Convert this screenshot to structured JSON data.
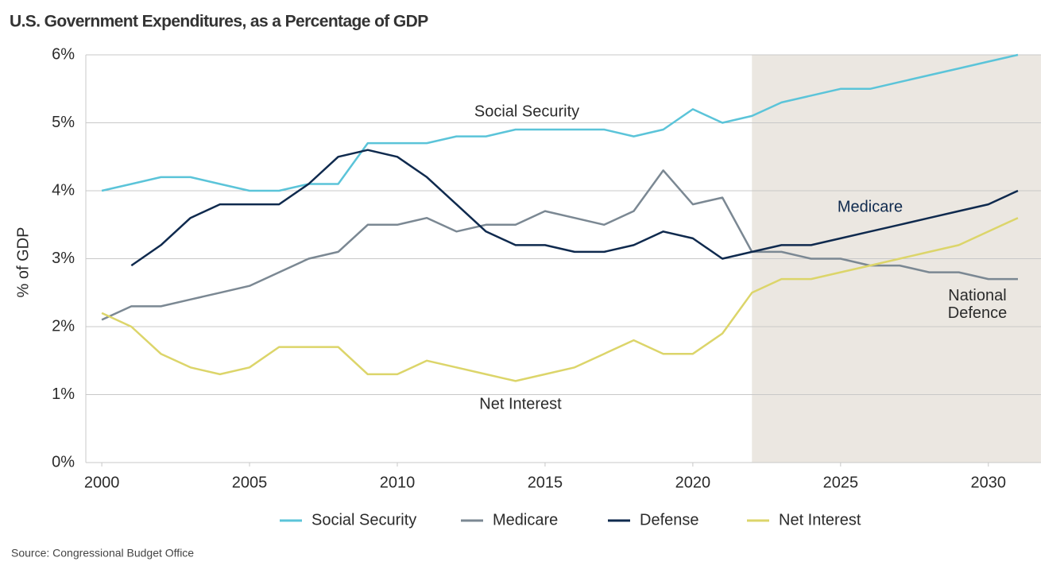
{
  "chart_data": {
    "type": "line",
    "title": "U.S. Government Expenditures, as a Percentage of GDP",
    "y_label": "% of GDP",
    "source": "Source: Congressional Budget Office",
    "x": [
      2000,
      2001,
      2002,
      2003,
      2004,
      2005,
      2006,
      2007,
      2008,
      2009,
      2010,
      2011,
      2012,
      2013,
      2014,
      2015,
      2016,
      2017,
      2018,
      2019,
      2020,
      2021,
      2022,
      2023,
      2024,
      2025,
      2026,
      2027,
      2028,
      2029,
      2030,
      2031
    ],
    "series": [
      {
        "name": "Social Security",
        "color": "#5bc4d9",
        "values": [
          4.0,
          4.1,
          4.2,
          4.2,
          4.1,
          4.0,
          4.0,
          4.1,
          4.1,
          4.7,
          4.7,
          4.7,
          4.8,
          4.8,
          4.9,
          4.9,
          4.9,
          4.9,
          4.8,
          4.9,
          5.2,
          5.0,
          5.1,
          5.3,
          5.4,
          5.5,
          5.5,
          5.6,
          5.7,
          5.8,
          5.9,
          6.0
        ]
      },
      {
        "name": "Medicare",
        "color": "#7b8893",
        "values": [
          2.1,
          2.3,
          2.3,
          2.4,
          2.5,
          2.6,
          2.8,
          3.0,
          3.1,
          3.5,
          3.5,
          3.6,
          3.4,
          3.5,
          3.5,
          3.7,
          3.6,
          3.5,
          3.7,
          4.3,
          3.8,
          3.9,
          3.1,
          3.1,
          3.0,
          3.0,
          2.9,
          2.9,
          2.8,
          2.8,
          2.7,
          2.7
        ]
      },
      {
        "name": "Defense",
        "color": "#0f2a4e",
        "values": [
          null,
          2.9,
          3.2,
          3.6,
          3.8,
          3.8,
          3.8,
          4.1,
          4.5,
          4.6,
          4.5,
          4.2,
          3.8,
          3.4,
          3.2,
          3.2,
          3.1,
          3.1,
          3.2,
          3.4,
          3.3,
          3.0,
          3.1,
          3.2,
          3.2,
          3.3,
          3.4,
          3.5,
          3.6,
          3.7,
          3.8,
          4.0
        ]
      },
      {
        "name": "Net Interest",
        "color": "#dcd56a",
        "values": [
          2.2,
          2.0,
          1.6,
          1.4,
          1.3,
          1.4,
          1.7,
          1.7,
          1.7,
          1.3,
          1.3,
          1.5,
          1.4,
          1.3,
          1.2,
          1.3,
          1.4,
          1.6,
          1.8,
          1.6,
          1.6,
          1.9,
          2.5,
          2.7,
          2.7,
          2.8,
          2.9,
          3.0,
          3.1,
          3.2,
          3.4,
          3.6
        ]
      }
    ],
    "annotations": [
      "Social Security",
      "Medicare",
      "National Defence",
      "Net Interest"
    ],
    "shaded_from": 2022,
    "xlim": [
      1999.46,
      2031.78
    ],
    "xticks": [
      2000,
      2005,
      2010,
      2015,
      2020,
      2025,
      2030
    ],
    "ylim": [
      0,
      6
    ],
    "yticks": [
      {
        "value": 0,
        "label": "0%"
      },
      {
        "value": 1,
        "label": "1%"
      },
      {
        "value": 2,
        "label": "2%"
      },
      {
        "value": 3,
        "label": "3%"
      },
      {
        "value": 4,
        "label": "4%"
      },
      {
        "value": 5,
        "label": "5%"
      },
      {
        "value": 6,
        "label": "6%"
      }
    ],
    "grid": true,
    "legend": "bottom"
  }
}
